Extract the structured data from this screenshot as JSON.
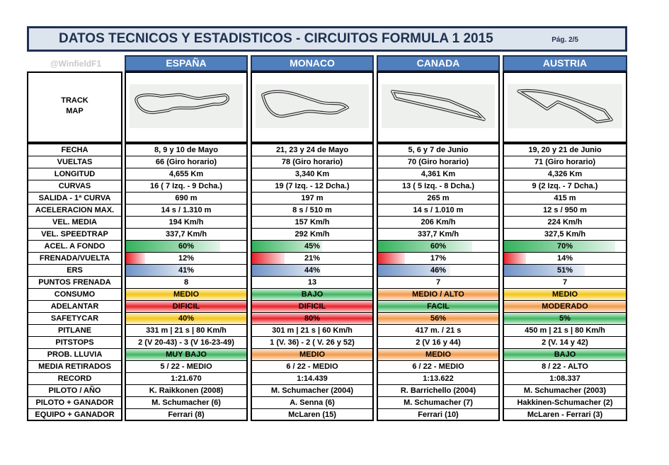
{
  "title": "DATOS TECNICOS Y ESTADISTICOS - CIRCUITOS FORMULA 1 2015",
  "page": "Pág. 2/5",
  "watermark": "@WinfieldF1",
  "track_label": "TRACK MAP",
  "columns": [
    "ESPAÑA",
    "MONACO",
    "CANADA",
    "AUSTRIA"
  ],
  "rows": [
    {
      "label": "FECHA",
      "cells": [
        "8, 9 y 10 de Mayo",
        "21, 23 y 24 de Mayo",
        "5, 6 y 7 de Junio",
        "19, 20 y 21 de Junio"
      ]
    },
    {
      "label": "VUELTAS",
      "cells": [
        "66 (Giro horario)",
        "78 (Giro horario)",
        "70 (Giro horario)",
        "71 (Giro horario)"
      ]
    },
    {
      "label": "LONGITUD",
      "cells": [
        "4,655 Km",
        "3,340 Km",
        "4,361 Km",
        "4,326 Km"
      ]
    },
    {
      "label": "CURVAS",
      "cells": [
        "16 ( 7 Izq. - 9 Dcha.)",
        "19 (7 Izq. - 12 Dcha.)",
        "13 ( 5 Izq. - 8 Dcha.)",
        "9 (2 Izq. - 7 Dcha.)"
      ]
    },
    {
      "label": "SALIDA - 1ª CURVA",
      "cells": [
        "690 m",
        "197 m",
        "265 m",
        "415 m"
      ]
    },
    {
      "label": "ACELERACION MAX.",
      "cells": [
        "14 s / 1.310 m",
        "8 s / 510 m",
        "14 s / 1.010 m",
        "12 s / 950 m"
      ]
    },
    {
      "label": "VEL. MEDIA",
      "cells": [
        "194 Km/h",
        "157 Km/h",
        "206 Km/h",
        "224 Km/h"
      ]
    },
    {
      "label": "VEL. SPEEDTRAP",
      "cells": [
        "337,7 Km/h",
        "292 Km/h",
        "337,7 Km/h",
        "327,5 Km/h"
      ]
    },
    {
      "label": "ACEL. A FONDO",
      "cells": [
        "60%",
        "45%",
        "60%",
        "70%"
      ],
      "bar": "#33b25c"
    },
    {
      "label": "FRENADA/VUELTA",
      "cells": [
        "12%",
        "21%",
        "17%",
        "14%"
      ],
      "bar": "#e8222a"
    },
    {
      "label": "ERS",
      "cells": [
        "41%",
        "44%",
        "46%",
        "51%"
      ],
      "bar": "#6f93c8"
    },
    {
      "label": "PUNTOS FRENADA",
      "cells": [
        "8",
        "13",
        "7",
        "7"
      ]
    },
    {
      "label": "CONSUMO",
      "cells": [
        "MEDIO",
        "BAJO",
        "MEDIO / ALTO",
        "MEDIO"
      ],
      "colors": [
        "#f5c518",
        "#3fb560",
        "#f39a4a",
        "#f5c518"
      ]
    },
    {
      "label": "ADELANTAR",
      "cells": [
        "DIFICIL",
        "DIFICIL",
        "FACIL",
        "MODERADO"
      ],
      "colors": [
        "#e8222a",
        "#e8222a",
        "#3fb560",
        "#f39a4a"
      ]
    },
    {
      "label": "SAFETYCAR",
      "cells": [
        "40%",
        "80%",
        "56%",
        "5%"
      ],
      "colors": [
        "#f5c518",
        "#e8222a",
        "#f39a4a",
        "#3fb560"
      ]
    },
    {
      "label": "PITLANE",
      "cells": [
        "331 m | 21 s | 80 Km/h",
        "301 m | 21 s | 60 Km/h",
        "417 m. / 21 s",
        "450 m | 21 s | 80 Km/h"
      ]
    },
    {
      "label": "PITSTOPS",
      "cells": [
        "2 (V 20-43) - 3 (V 16-23-49)",
        "1 (V. 36) - 2 ( V. 26 y 52)",
        "2 (V 16 y 44)",
        "2 (V. 14 y 42)"
      ]
    },
    {
      "label": "PROB. LLUVIA",
      "cells": [
        "MUY BAJO",
        "MEDIO",
        "MEDIO",
        "BAJO"
      ],
      "colors": [
        "#3fb560",
        "#f39a4a",
        "#f39a4a",
        "#3fb560"
      ]
    },
    {
      "label": "MEDIA RETIRADOS",
      "cells": [
        "5 / 22 -  MEDIO",
        "6 / 22 -  MEDIO",
        "6 / 22 -  MEDIO",
        "8 / 22 -  ALTO"
      ]
    },
    {
      "label": "RECORD",
      "cells": [
        "1:21.670",
        "1:14.439",
        "1:13.622",
        "1:08.337"
      ]
    },
    {
      "label": "PILOTO / AÑO",
      "cells": [
        "K. Raikkonen (2008)",
        "M. Schumacher (2004)",
        "R. Barrichello (2004)",
        "M. Schumacher (2003)"
      ]
    },
    {
      "label": "PILOTO + GANADOR",
      "cells": [
        "M. Schumacher (6)",
        "A. Senna (6)",
        "M. Schumacher (7)",
        "Hakkinen-Schumacher (2)"
      ]
    },
    {
      "label": "EQUIPO + GANADOR",
      "cells": [
        "Ferrari (8)",
        "McLaren (15)",
        "Ferrari (10)",
        "McLaren - Ferrari (3)"
      ]
    }
  ]
}
